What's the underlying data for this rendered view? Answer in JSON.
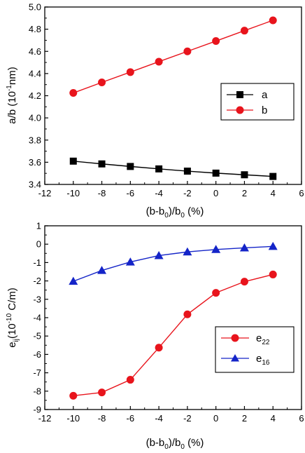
{
  "chart_data": [
    {
      "type": "line",
      "x": [
        -10,
        -8,
        -6,
        -4,
        -2,
        0,
        2,
        4
      ],
      "xlim": [
        -12,
        6
      ],
      "xticks": [
        "-12",
        "-10",
        "-8",
        "-6",
        "-4",
        "-2",
        "0",
        "2",
        "4",
        "6"
      ],
      "ylim": [
        3.4,
        5.0
      ],
      "yticks": [
        "3.4",
        "3.6",
        "3.8",
        "4.0",
        "4.2",
        "4.4",
        "4.6",
        "4.8",
        "5.0"
      ],
      "xlabel": "(b-b0)/b0 (%)",
      "ylabel": "a/b (10-1 nm)",
      "legend_position": "right",
      "series": [
        {
          "name": "a",
          "color": "#000000",
          "marker": "square",
          "values": [
            3.61,
            3.585,
            3.562,
            3.54,
            3.52,
            3.502,
            3.487,
            3.472
          ]
        },
        {
          "name": "b",
          "color": "#e8141c",
          "marker": "circle",
          "values": [
            4.225,
            4.32,
            4.413,
            4.507,
            4.6,
            4.693,
            4.787,
            4.88
          ]
        }
      ]
    },
    {
      "type": "line",
      "x": [
        -10,
        -8,
        -6,
        -4,
        -2,
        0,
        2,
        4
      ],
      "xlim": [
        -12,
        6
      ],
      "xticks": [
        "-12",
        "-10",
        "-8",
        "-6",
        "-4",
        "-2",
        "0",
        "2",
        "4",
        "6"
      ],
      "ylim": [
        -9,
        1
      ],
      "yticks": [
        "-9",
        "-8",
        "-7",
        "-6",
        "-5",
        "-4",
        "-3",
        "-2",
        "-1",
        "0",
        "1"
      ],
      "xlabel": "(b-b0)/b0 (%)",
      "ylabel": "eij(10-10 C/m)",
      "legend_position": "bottom-right",
      "series": [
        {
          "name": "e22",
          "color": "#e8141c",
          "marker": "circle",
          "values": [
            -8.25,
            -8.07,
            -7.38,
            -5.63,
            -3.82,
            -2.65,
            -2.04,
            -1.65
          ]
        },
        {
          "name": "e16",
          "color": "#1424c8",
          "marker": "triangle",
          "values": [
            -2.02,
            -1.43,
            -0.97,
            -0.62,
            -0.42,
            -0.29,
            -0.2,
            -0.12
          ]
        }
      ]
    }
  ],
  "labels": {
    "top_ylabel": {
      "main": "a/b (10",
      "sup": "-1",
      "rest": "nm)"
    },
    "bottom_ylabel": {
      "main": "e",
      "sub": "ij",
      "mid": "(10",
      "sup": "-10",
      "rest": " C/m)"
    },
    "xlabel": {
      "p1": "(b-b",
      "s1": "0",
      "p2": ")/b",
      "s2": "0",
      "p3": " (%)"
    },
    "top_legend": [
      {
        "main": "a"
      },
      {
        "main": "b"
      }
    ],
    "bottom_legend": [
      {
        "main": "e",
        "sub": "22"
      },
      {
        "main": "e",
        "sub": "16"
      }
    ]
  }
}
